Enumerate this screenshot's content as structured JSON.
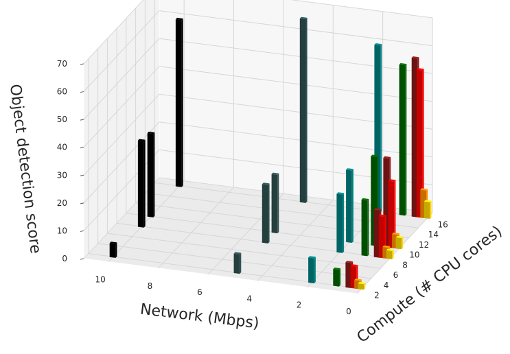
{
  "chart_data": {
    "type": "bar3d",
    "title": "",
    "xlabel": "Network (Mbps)",
    "ylabel": "Compute (# CPU cores)",
    "zlabel": "Object detection score",
    "x_ticks": [
      "10",
      "8",
      "6",
      "4",
      "2",
      "0"
    ],
    "y_ticks": [
      "2",
      "4",
      "6",
      "8",
      "10",
      "12",
      "14",
      "16"
    ],
    "z_ticks": [
      "0",
      "10",
      "20",
      "30",
      "40",
      "50",
      "60",
      "70"
    ],
    "xlim": [
      0,
      11
    ],
    "ylim": [
      1,
      17
    ],
    "zlim": [
      0,
      70
    ],
    "grid": true,
    "series": [
      {
        "color": "#000000",
        "network": 10,
        "points": [
          [
            2,
            5
          ],
          [
            8,
            31
          ],
          [
            10,
            30
          ],
          [
            16,
            60
          ]
        ]
      },
      {
        "color": "#2f4f4f",
        "network": 5,
        "points": [
          [
            2,
            7
          ],
          [
            8,
            21
          ],
          [
            10,
            21
          ],
          [
            16,
            66
          ]
        ]
      },
      {
        "color": "#008080",
        "network": 2,
        "points": [
          [
            2,
            9
          ],
          [
            8,
            21
          ],
          [
            10,
            26
          ],
          [
            16,
            60
          ]
        ]
      },
      {
        "color": "#006400",
        "network": 1,
        "points": [
          [
            2,
            6
          ],
          [
            8,
            20
          ],
          [
            10,
            32
          ],
          [
            16,
            54
          ]
        ]
      },
      {
        "color": "#8b1a1a",
        "network": 0.5,
        "points": [
          [
            2,
            9
          ],
          [
            8,
            17
          ],
          [
            10,
            32
          ],
          [
            16,
            57
          ]
        ]
      },
      {
        "color": "#ff0000",
        "network": 0.3,
        "points": [
          [
            2,
            8
          ],
          [
            8,
            15
          ],
          [
            10,
            24
          ],
          [
            16,
            53
          ]
        ]
      },
      {
        "color": "#ff8c00",
        "network": 0.15,
        "points": [
          [
            2,
            3
          ],
          [
            8,
            4
          ],
          [
            10,
            5
          ],
          [
            16,
            10
          ]
        ]
      },
      {
        "color": "#ffd700",
        "network": 0,
        "points": [
          [
            2,
            2
          ],
          [
            8,
            3
          ],
          [
            10,
            4
          ],
          [
            16,
            6
          ]
        ]
      }
    ]
  }
}
